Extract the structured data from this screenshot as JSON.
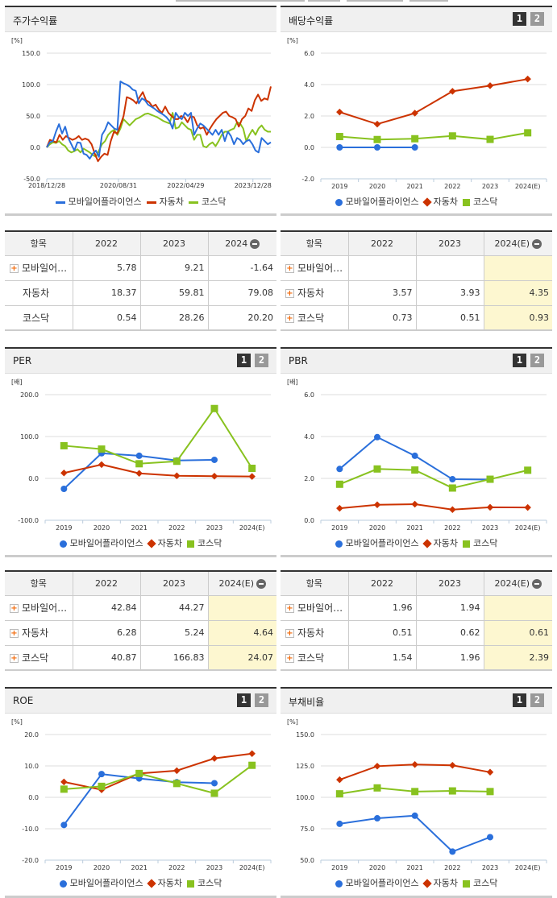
{
  "colors": {
    "mobile": "#2a6fdb",
    "auto": "#cc3300",
    "kosdaq": "#88c21f",
    "highlight": "#fdf7d0"
  },
  "legend": {
    "mobile": "모바일어플라이언스",
    "auto": "자동차",
    "kosdaq": "코스닥"
  },
  "toggles": {
    "one": "1",
    "two": "2"
  },
  "panels": {
    "stock": {
      "title": "주가수익률",
      "unit": "[%]"
    },
    "dividend": {
      "title": "배당수익률",
      "unit": "[%]"
    },
    "per": {
      "title": "PER",
      "unit": "[배]"
    },
    "pbr": {
      "title": "PBR",
      "unit": "[배]"
    },
    "roe": {
      "title": "ROE",
      "unit": "[%]"
    },
    "debt": {
      "title": "부채비율",
      "unit": "[%]"
    }
  },
  "tables": {
    "stock": {
      "headers": [
        "항목",
        "2022",
        "2023",
        "2024"
      ],
      "rows": [
        {
          "name": "모바일어…",
          "plus": true,
          "values": [
            "5.78",
            "9.21",
            "-1.64"
          ]
        },
        {
          "name": "자동차",
          "plus": false,
          "values": [
            "18.37",
            "59.81",
            "79.08"
          ]
        },
        {
          "name": "코스닥",
          "plus": false,
          "values": [
            "0.54",
            "28.26",
            "20.20"
          ]
        }
      ],
      "highlight_last": false
    },
    "dividend": {
      "headers": [
        "항목",
        "2022",
        "2023",
        "2024(E)"
      ],
      "rows": [
        {
          "name": "모바일어…",
          "plus": true,
          "values": [
            "",
            "",
            ""
          ]
        },
        {
          "name": "자동차",
          "plus": true,
          "values": [
            "3.57",
            "3.93",
            "4.35"
          ]
        },
        {
          "name": "코스닥",
          "plus": true,
          "values": [
            "0.73",
            "0.51",
            "0.93"
          ]
        }
      ],
      "highlight_last": true
    },
    "per": {
      "headers": [
        "항목",
        "2022",
        "2023",
        "2024(E)"
      ],
      "rows": [
        {
          "name": "모바일어…",
          "plus": true,
          "values": [
            "42.84",
            "44.27",
            ""
          ]
        },
        {
          "name": "자동차",
          "plus": true,
          "values": [
            "6.28",
            "5.24",
            "4.64"
          ]
        },
        {
          "name": "코스닥",
          "plus": true,
          "values": [
            "40.87",
            "166.83",
            "24.07"
          ]
        }
      ],
      "highlight_last": true
    },
    "pbr": {
      "headers": [
        "항목",
        "2022",
        "2023",
        "2024(E)"
      ],
      "rows": [
        {
          "name": "모바일어…",
          "plus": true,
          "values": [
            "1.96",
            "1.94",
            ""
          ]
        },
        {
          "name": "자동차",
          "plus": true,
          "values": [
            "0.51",
            "0.62",
            "0.61"
          ]
        },
        {
          "name": "코스닥",
          "plus": true,
          "values": [
            "1.54",
            "1.96",
            "2.39"
          ]
        }
      ],
      "highlight_last": true
    }
  },
  "chart_data": [
    {
      "id": "stock",
      "type": "line",
      "title": "주가수익률",
      "ylabel": "[%]",
      "ylim": [
        -50,
        150
      ],
      "yticks": [
        150,
        100,
        50,
        0,
        -50
      ],
      "ytick_labels": [
        "150.0",
        "100.0",
        "50.0",
        "0.0",
        "-50.0"
      ],
      "xtick_labels": [
        "2018/12/28",
        "2020/08/31",
        "2022/04/29",
        "2023/12/28"
      ],
      "xtick_pos": [
        0,
        0.32,
        0.62,
        0.92
      ],
      "series": [
        {
          "name": "모바일어플라이언스",
          "key": "mobile",
          "values": [
            0,
            8,
            10,
            25,
            37,
            22,
            33,
            15,
            5,
            -5,
            8,
            7,
            -10,
            -12,
            -18,
            -10,
            -5,
            -15,
            20,
            28,
            40,
            35,
            30,
            28,
            105,
            102,
            100,
            97,
            92,
            90,
            70,
            78,
            75,
            68,
            65,
            62,
            58,
            55,
            52,
            48,
            42,
            30,
            55,
            48,
            45,
            55,
            50,
            55,
            20,
            30,
            38,
            35,
            30,
            25,
            20,
            28,
            20,
            28,
            10,
            25,
            18,
            5,
            15,
            12,
            5,
            10,
            12,
            5,
            -5,
            -8,
            15,
            10,
            5,
            8
          ]
        },
        {
          "name": "자동차",
          "key": "auto",
          "values": [
            0,
            12,
            10,
            8,
            20,
            12,
            18,
            15,
            12,
            14,
            18,
            12,
            14,
            12,
            5,
            -10,
            -22,
            -15,
            -10,
            -12,
            10,
            25,
            22,
            35,
            50,
            80,
            78,
            75,
            70,
            80,
            88,
            75,
            72,
            65,
            68,
            60,
            55,
            65,
            55,
            50,
            45,
            45,
            50,
            48,
            40,
            50,
            48,
            35,
            30,
            32,
            20,
            30,
            38,
            45,
            50,
            55,
            57,
            50,
            48,
            45,
            33,
            45,
            50,
            62,
            58,
            75,
            84,
            74,
            78,
            76,
            97
          ]
        },
        {
          "name": "코스닥",
          "key": "kosdaq",
          "values": [
            0,
            5,
            8,
            7,
            10,
            5,
            2,
            -5,
            -8,
            -6,
            -3,
            -8,
            -2,
            -5,
            -8,
            -12,
            -15,
            -5,
            5,
            10,
            20,
            25,
            28,
            20,
            30,
            45,
            40,
            35,
            40,
            45,
            47,
            50,
            53,
            54,
            52,
            50,
            48,
            45,
            42,
            40,
            38,
            55,
            30,
            32,
            40,
            35,
            30,
            28,
            12,
            20,
            20,
            2,
            0,
            5,
            8,
            2,
            10,
            20,
            25,
            25,
            28,
            30,
            40,
            38,
            30,
            10,
            20,
            28,
            20,
            30,
            35,
            28,
            25,
            25
          ]
        }
      ]
    },
    {
      "id": "dividend",
      "type": "line",
      "title": "배당수익률",
      "ylabel": "[%]",
      "ylim": [
        -2,
        6
      ],
      "yticks": [
        6,
        4,
        2,
        0,
        -2
      ],
      "ytick_labels": [
        "6.0",
        "4.0",
        "2.0",
        "0.0",
        "-2.0"
      ],
      "categories": [
        "2019",
        "2020",
        "2021",
        "2022",
        "2023",
        "2024(E)"
      ],
      "series": [
        {
          "name": "모바일어플라이언스",
          "key": "mobile",
          "values": [
            0.0,
            0.0,
            0.0,
            null,
            null,
            null
          ]
        },
        {
          "name": "자동차",
          "key": "auto",
          "values": [
            2.25,
            1.48,
            2.18,
            3.57,
            3.93,
            4.35
          ]
        },
        {
          "name": "코스닥",
          "key": "kosdaq",
          "values": [
            0.69,
            0.5,
            0.55,
            0.73,
            0.51,
            0.93
          ]
        }
      ]
    },
    {
      "id": "per",
      "type": "line",
      "title": "PER",
      "ylabel": "[배]",
      "ylim": [
        -100,
        200
      ],
      "yticks": [
        200,
        100,
        0,
        -100
      ],
      "ytick_labels": [
        "200.0",
        "100.0",
        "0.0",
        "-100.0"
      ],
      "categories": [
        "2019",
        "2020",
        "2021",
        "2022",
        "2023",
        "2024(E)"
      ],
      "series": [
        {
          "name": "모바일어플라이언스",
          "key": "mobile",
          "values": [
            -25,
            60,
            54,
            42.84,
            44.27,
            null
          ]
        },
        {
          "name": "자동차",
          "key": "auto",
          "values": [
            13,
            33,
            12,
            6.28,
            5.24,
            4.64
          ]
        },
        {
          "name": "코스닥",
          "key": "kosdaq",
          "values": [
            78,
            70,
            35,
            40.87,
            166.83,
            24.07
          ]
        }
      ]
    },
    {
      "id": "pbr",
      "type": "line",
      "title": "PBR",
      "ylabel": "[배]",
      "ylim": [
        0,
        6
      ],
      "yticks": [
        6,
        4,
        2,
        0
      ],
      "ytick_labels": [
        "6.0",
        "4.0",
        "2.0",
        "0.0"
      ],
      "categories": [
        "2019",
        "2020",
        "2021",
        "2022",
        "2023",
        "2024(E)"
      ],
      "series": [
        {
          "name": "모바일어플라이언스",
          "key": "mobile",
          "values": [
            2.45,
            3.97,
            3.08,
            1.96,
            1.94,
            null
          ]
        },
        {
          "name": "자동차",
          "key": "auto",
          "values": [
            0.57,
            0.74,
            0.77,
            0.51,
            0.62,
            0.61
          ]
        },
        {
          "name": "코스닥",
          "key": "kosdaq",
          "values": [
            1.72,
            2.45,
            2.4,
            1.54,
            1.96,
            2.39
          ]
        }
      ]
    },
    {
      "id": "roe",
      "type": "line",
      "title": "ROE",
      "ylabel": "[%]",
      "ylim": [
        -20,
        20
      ],
      "yticks": [
        20,
        10,
        0,
        -10,
        -20
      ],
      "ytick_labels": [
        "20.0",
        "10.0",
        "0.0",
        "-10.0",
        "-20.0"
      ],
      "categories": [
        "2019",
        "2020",
        "2021",
        "2022",
        "2023",
        "2024(E)"
      ],
      "series": [
        {
          "name": "모바일어플라이언스",
          "key": "mobile",
          "values": [
            -8.8,
            7.4,
            6.0,
            4.8,
            4.5,
            null
          ]
        },
        {
          "name": "자동차",
          "key": "auto",
          "values": [
            4.9,
            2.4,
            7.6,
            8.5,
            12.4,
            13.9
          ]
        },
        {
          "name": "코스닥",
          "key": "kosdaq",
          "values": [
            2.6,
            3.5,
            7.6,
            4.4,
            1.3,
            10.2
          ]
        }
      ]
    },
    {
      "id": "debt",
      "type": "line",
      "title": "부채비율",
      "ylabel": "[%]",
      "ylim": [
        50,
        150
      ],
      "yticks": [
        150,
        125,
        100,
        75,
        50
      ],
      "ytick_labels": [
        "150.0",
        "125.0",
        "100.0",
        "75.0",
        "50.0"
      ],
      "categories": [
        "2019",
        "2020",
        "2021",
        "2022",
        "2023",
        "2024(E)"
      ],
      "series": [
        {
          "name": "모바일어플라이언스",
          "key": "mobile",
          "values": [
            78.9,
            83.3,
            85.4,
            56.8,
            68.3,
            null
          ]
        },
        {
          "name": "자동차",
          "key": "auto",
          "values": [
            114.0,
            124.8,
            126.1,
            125.5,
            120.0,
            null
          ]
        },
        {
          "name": "코스닥",
          "key": "kosdaq",
          "values": [
            102.8,
            107.5,
            104.6,
            105.1,
            104.6,
            null
          ]
        }
      ]
    }
  ]
}
